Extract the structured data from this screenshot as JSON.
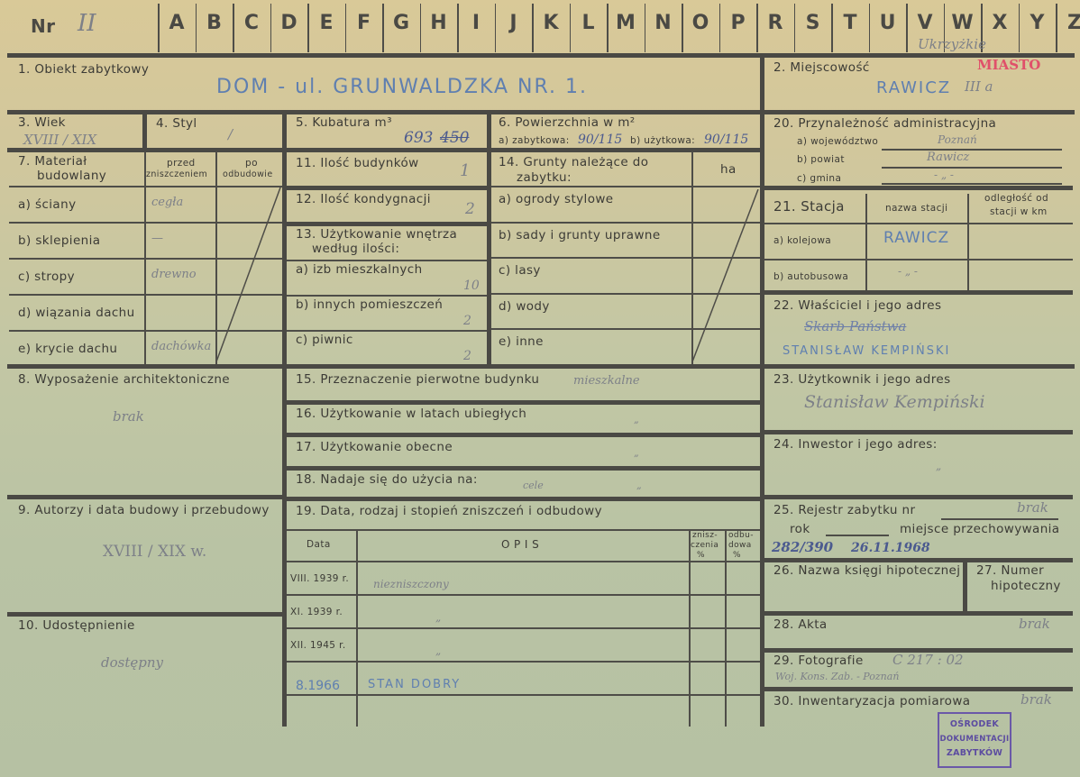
{
  "header": {
    "nr_label": "Nr",
    "nr_value": "II",
    "letters": [
      "A",
      "B",
      "C",
      "D",
      "E",
      "F",
      "G",
      "H",
      "I",
      "J",
      "K",
      "L",
      "M",
      "N",
      "O",
      "P",
      "R",
      "S",
      "T",
      "U",
      "V",
      "W",
      "X",
      "Y",
      "Z"
    ],
    "margin_note": "Ukrzyżkie"
  },
  "s1": {
    "label": "1. Obiekt zabytkowy",
    "value": "DOM - ul. GRUNWALDZKA  NR. 1."
  },
  "s2": {
    "label": "2. Miejscowość",
    "value": "RAWICZ",
    "note": "III a",
    "stamp": "MIASTO"
  },
  "s3": {
    "label": "3. Wiek",
    "value": "XVIII / XIX"
  },
  "s4": {
    "label": "4. Styl",
    "value": "/"
  },
  "s5": {
    "label": "5. Kubatura m³",
    "value": "693",
    "struck": "450"
  },
  "s6": {
    "label": "6. Powierzchnia w m²",
    "a_label": "a) zabytkowa:",
    "a_value": "90/115",
    "b_label": "b) użytkowa:",
    "b_value": "90/115"
  },
  "s7": {
    "label1": "7. Materiał",
    "label2": "budowlany",
    "col_przed1": "przed",
    "col_przed2": "zniszczeniem",
    "col_po1": "po",
    "col_po2": "odbudowie",
    "rows": [
      {
        "label": "a) ściany",
        "value": "cegła"
      },
      {
        "label": "b) sklepienia",
        "value": "—"
      },
      {
        "label": "c) stropy",
        "value": "drewno"
      },
      {
        "label": "d) wiązania dachu",
        "value": ""
      },
      {
        "label": "e) krycie dachu",
        "value": "dachówka"
      }
    ]
  },
  "s11": {
    "label": "11. Ilość budynków",
    "value": "1"
  },
  "s12": {
    "label": "12. Ilość kondygnacji",
    "value": "2"
  },
  "s13": {
    "label1": "13. Użytkowanie wnętrza",
    "label2": "według ilości:",
    "rows": [
      {
        "label": "a) izb mieszkalnych",
        "value": "10"
      },
      {
        "label": "b) innych pomieszczeń",
        "value": "2"
      },
      {
        "label": "c) piwnic",
        "value": "2"
      }
    ]
  },
  "s14": {
    "label1": "14. Grunty należące do",
    "label2": "zabytku:",
    "unit": "ha",
    "rows": [
      "a) ogrody stylowe",
      "b) sady i grunty uprawne",
      "c) lasy",
      "d) wody",
      "e) inne"
    ]
  },
  "s20": {
    "label": "20. Przynależność administracyjna",
    "a_label": "a) województwo",
    "a_value": "Poznań",
    "b_label": "b) powiat",
    "b_value": "Rawicz",
    "c_label": "c) gmina",
    "c_value": "- „ -"
  },
  "s21": {
    "label": "21. Stacja",
    "col_name": "nazwa stacji",
    "col_dist1": "odległość od",
    "col_dist2": "stacji w km",
    "a_label": "a) kolejowa",
    "a_value": "RAWICZ",
    "b_label": "b) autobusowa",
    "b_value": "- „ -"
  },
  "s22": {
    "label": "22. Właściciel i jego adres",
    "struck": "Skarb Państwa",
    "value": "STANISŁAW KEMPIŃSKI"
  },
  "s8": {
    "label": "8. Wyposażenie architektoniczne",
    "value": "brak"
  },
  "s9": {
    "label": "9. Autorzy i data budowy i przebudowy",
    "value": "XVIII / XIX w."
  },
  "s10": {
    "label": "10. Udostępnienie",
    "value": "dostępny"
  },
  "s15": {
    "label": "15. Przeznaczenie pierwotne budynku",
    "value": "mieszkalne"
  },
  "s16": {
    "label": "16. Użytkowanie w latach ubiegłych",
    "value": "„"
  },
  "s17": {
    "label": "17. Użytkowanie obecne",
    "value": "„"
  },
  "s18": {
    "label": "18. Nadaje się do użycia na:",
    "value": "cele",
    "value2": "„"
  },
  "s19": {
    "label": "19. Data, rodzaj i stopień zniszczeń i odbudowy",
    "col_date": "Data",
    "col_desc": "O P I S",
    "col_dmg1": "znisz-",
    "col_dmg2": "czenia",
    "col_dmg3": "%",
    "col_reb1": "odbu-",
    "col_reb2": "dowa",
    "col_reb3": "%",
    "rows": [
      {
        "date": "VIII. 1939 r.",
        "desc": "niezniszczony"
      },
      {
        "date": "XI. 1939 r.",
        "desc": "„"
      },
      {
        "date": "XII. 1945 r.",
        "desc": "„"
      },
      {
        "date": "8.1966",
        "desc": "STAN DOBRY"
      }
    ]
  },
  "s23": {
    "label": "23. Użytkownik i jego adres",
    "value": "Stanisław Kempiński"
  },
  "s24": {
    "label": "24. Inwestor i jego adres:",
    "value": "„"
  },
  "s25": {
    "label": "25. Rejestr zabytku nr",
    "value": "brak",
    "rok_label": "rok",
    "place_label": "miejsce przechowywania",
    "reg_no": "282/390",
    "date": "26.11.1968"
  },
  "s26": {
    "label": "26. Nazwa księgi hipotecznej"
  },
  "s27": {
    "label1": "27. Numer",
    "label2": "hipoteczny"
  },
  "s28": {
    "label": "28. Akta",
    "value": "brak"
  },
  "s29": {
    "label": "29. Fotografie",
    "value": "C 217 : 02",
    "note": "Woj. Kons. Zab. - Poznań"
  },
  "s30": {
    "label": "30. Inwentaryzacja pomiarowa",
    "value": "brak"
  },
  "stamp": {
    "line1": "OŚRODEK",
    "line2": "DOKUMENTACJI",
    "line3": "ZABYTKÓW"
  },
  "colors": {
    "paper_top": "#d9c998",
    "paper_bottom": "#b6c1a3",
    "rule": "#4a4944",
    "ink_blue": "#5f7fb0",
    "stamp_violet": "#6a58a8",
    "stamp_red": "#e0506a"
  }
}
